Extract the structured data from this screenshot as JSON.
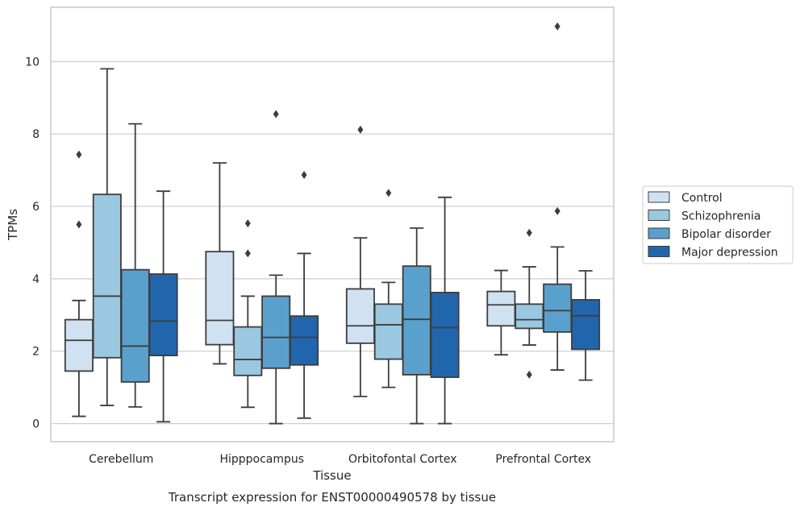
{
  "caption": "Transcript expression for ENST00000490578 by tissue",
  "chart_data": {
    "type": "box",
    "xlabel": "Tissue",
    "ylabel": "TPMs",
    "categories": [
      "Cerebellum",
      "Hipppocampus",
      "Orbitofontal Cortex",
      "Prefrontal Cortex"
    ],
    "ylim": [
      -0.5,
      11.5
    ],
    "yticks": [
      0,
      2,
      4,
      6,
      8,
      10
    ],
    "grid": "horizontal",
    "legend_position": "right",
    "series": [
      {
        "name": "Control",
        "color": "#d0e1f2",
        "boxes": [
          {
            "whislo": 0.2,
            "q1": 1.45,
            "med": 2.3,
            "q3": 2.87,
            "whishi": 3.4,
            "fliers": [
              5.5,
              7.43
            ]
          },
          {
            "whislo": 1.65,
            "q1": 2.18,
            "med": 2.85,
            "q3": 4.75,
            "whishi": 7.2,
            "fliers": []
          },
          {
            "whislo": 0.75,
            "q1": 2.22,
            "med": 2.7,
            "q3": 3.72,
            "whishi": 5.13,
            "fliers": [
              8.12
            ]
          },
          {
            "whislo": 1.9,
            "q1": 2.7,
            "med": 3.28,
            "q3": 3.65,
            "whishi": 4.23,
            "fliers": []
          }
        ]
      },
      {
        "name": "Schizophrenia",
        "color": "#9ac8e0",
        "boxes": [
          {
            "whislo": 0.5,
            "q1": 1.82,
            "med": 3.52,
            "q3": 6.33,
            "whishi": 9.8,
            "fliers": []
          },
          {
            "whislo": 0.45,
            "q1": 1.33,
            "med": 1.77,
            "q3": 2.67,
            "whishi": 3.52,
            "fliers": [
              4.7,
              5.53
            ]
          },
          {
            "whislo": 1.0,
            "q1": 1.78,
            "med": 2.73,
            "q3": 3.3,
            "whishi": 3.9,
            "fliers": [
              6.37
            ]
          },
          {
            "whislo": 2.17,
            "q1": 2.63,
            "med": 2.87,
            "q3": 3.3,
            "whishi": 4.33,
            "fliers": [
              1.35,
              5.27
            ]
          }
        ]
      },
      {
        "name": "Bipolar disorder",
        "color": "#5aa0cd",
        "boxes": [
          {
            "whislo": 0.46,
            "q1": 1.15,
            "med": 2.14,
            "q3": 4.25,
            "whishi": 8.28,
            "fliers": []
          },
          {
            "whislo": 0.0,
            "q1": 1.53,
            "med": 2.38,
            "q3": 3.52,
            "whishi": 4.1,
            "fliers": [
              8.55
            ]
          },
          {
            "whislo": 0.0,
            "q1": 1.35,
            "med": 2.88,
            "q3": 4.35,
            "whishi": 5.4,
            "fliers": []
          },
          {
            "whislo": 1.48,
            "q1": 2.53,
            "med": 3.12,
            "q3": 3.85,
            "whishi": 4.88,
            "fliers": [
              5.87,
              10.97
            ]
          }
        ]
      },
      {
        "name": "Major depression",
        "color": "#2166ac",
        "boxes": [
          {
            "whislo": 0.05,
            "q1": 1.88,
            "med": 2.83,
            "q3": 4.13,
            "whishi": 6.42,
            "fliers": []
          },
          {
            "whislo": 0.15,
            "q1": 1.62,
            "med": 2.38,
            "q3": 2.97,
            "whishi": 4.7,
            "fliers": [
              6.87
            ]
          },
          {
            "whislo": 0.0,
            "q1": 1.28,
            "med": 2.65,
            "q3": 3.62,
            "whishi": 6.25,
            "fliers": []
          },
          {
            "whislo": 1.2,
            "q1": 2.05,
            "med": 2.98,
            "q3": 3.42,
            "whishi": 4.22,
            "fliers": []
          }
        ]
      }
    ]
  }
}
